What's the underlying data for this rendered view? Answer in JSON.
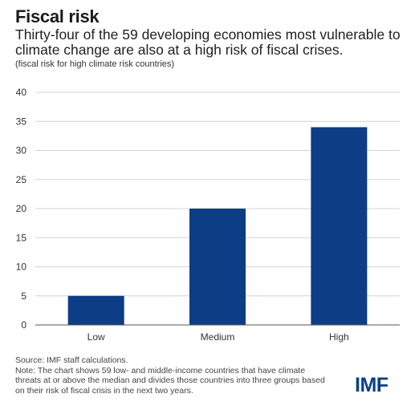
{
  "header": {
    "title": "Fiscal risk",
    "subtitle_line1": "Thirty-four of the 59 developing economies most vulnerable to",
    "subtitle_line2": "climate change are also at a high risk of fiscal crises.",
    "unit_note": "(fiscal risk for high climate risk countries)"
  },
  "chart_data": {
    "type": "bar",
    "categories": [
      "Low",
      "Medium",
      "High"
    ],
    "values": [
      5,
      20,
      34
    ],
    "ylim": [
      0,
      40
    ],
    "yticks": [
      0,
      5,
      10,
      15,
      20,
      25,
      30,
      35,
      40
    ],
    "grid": true,
    "bar_color": "#0d3d85"
  },
  "footer": {
    "source": "Source: IMF staff calculations.",
    "note_line1": "Note: The chart shows 59 low- and middle-income countries that have climate",
    "note_line2": "threats at or above the median and divides those countries into three groups based",
    "note_line3": "on their risk of fiscal crisis in the next two years."
  },
  "brand": {
    "logo_text": "IMF",
    "color": "#0a3f86"
  }
}
